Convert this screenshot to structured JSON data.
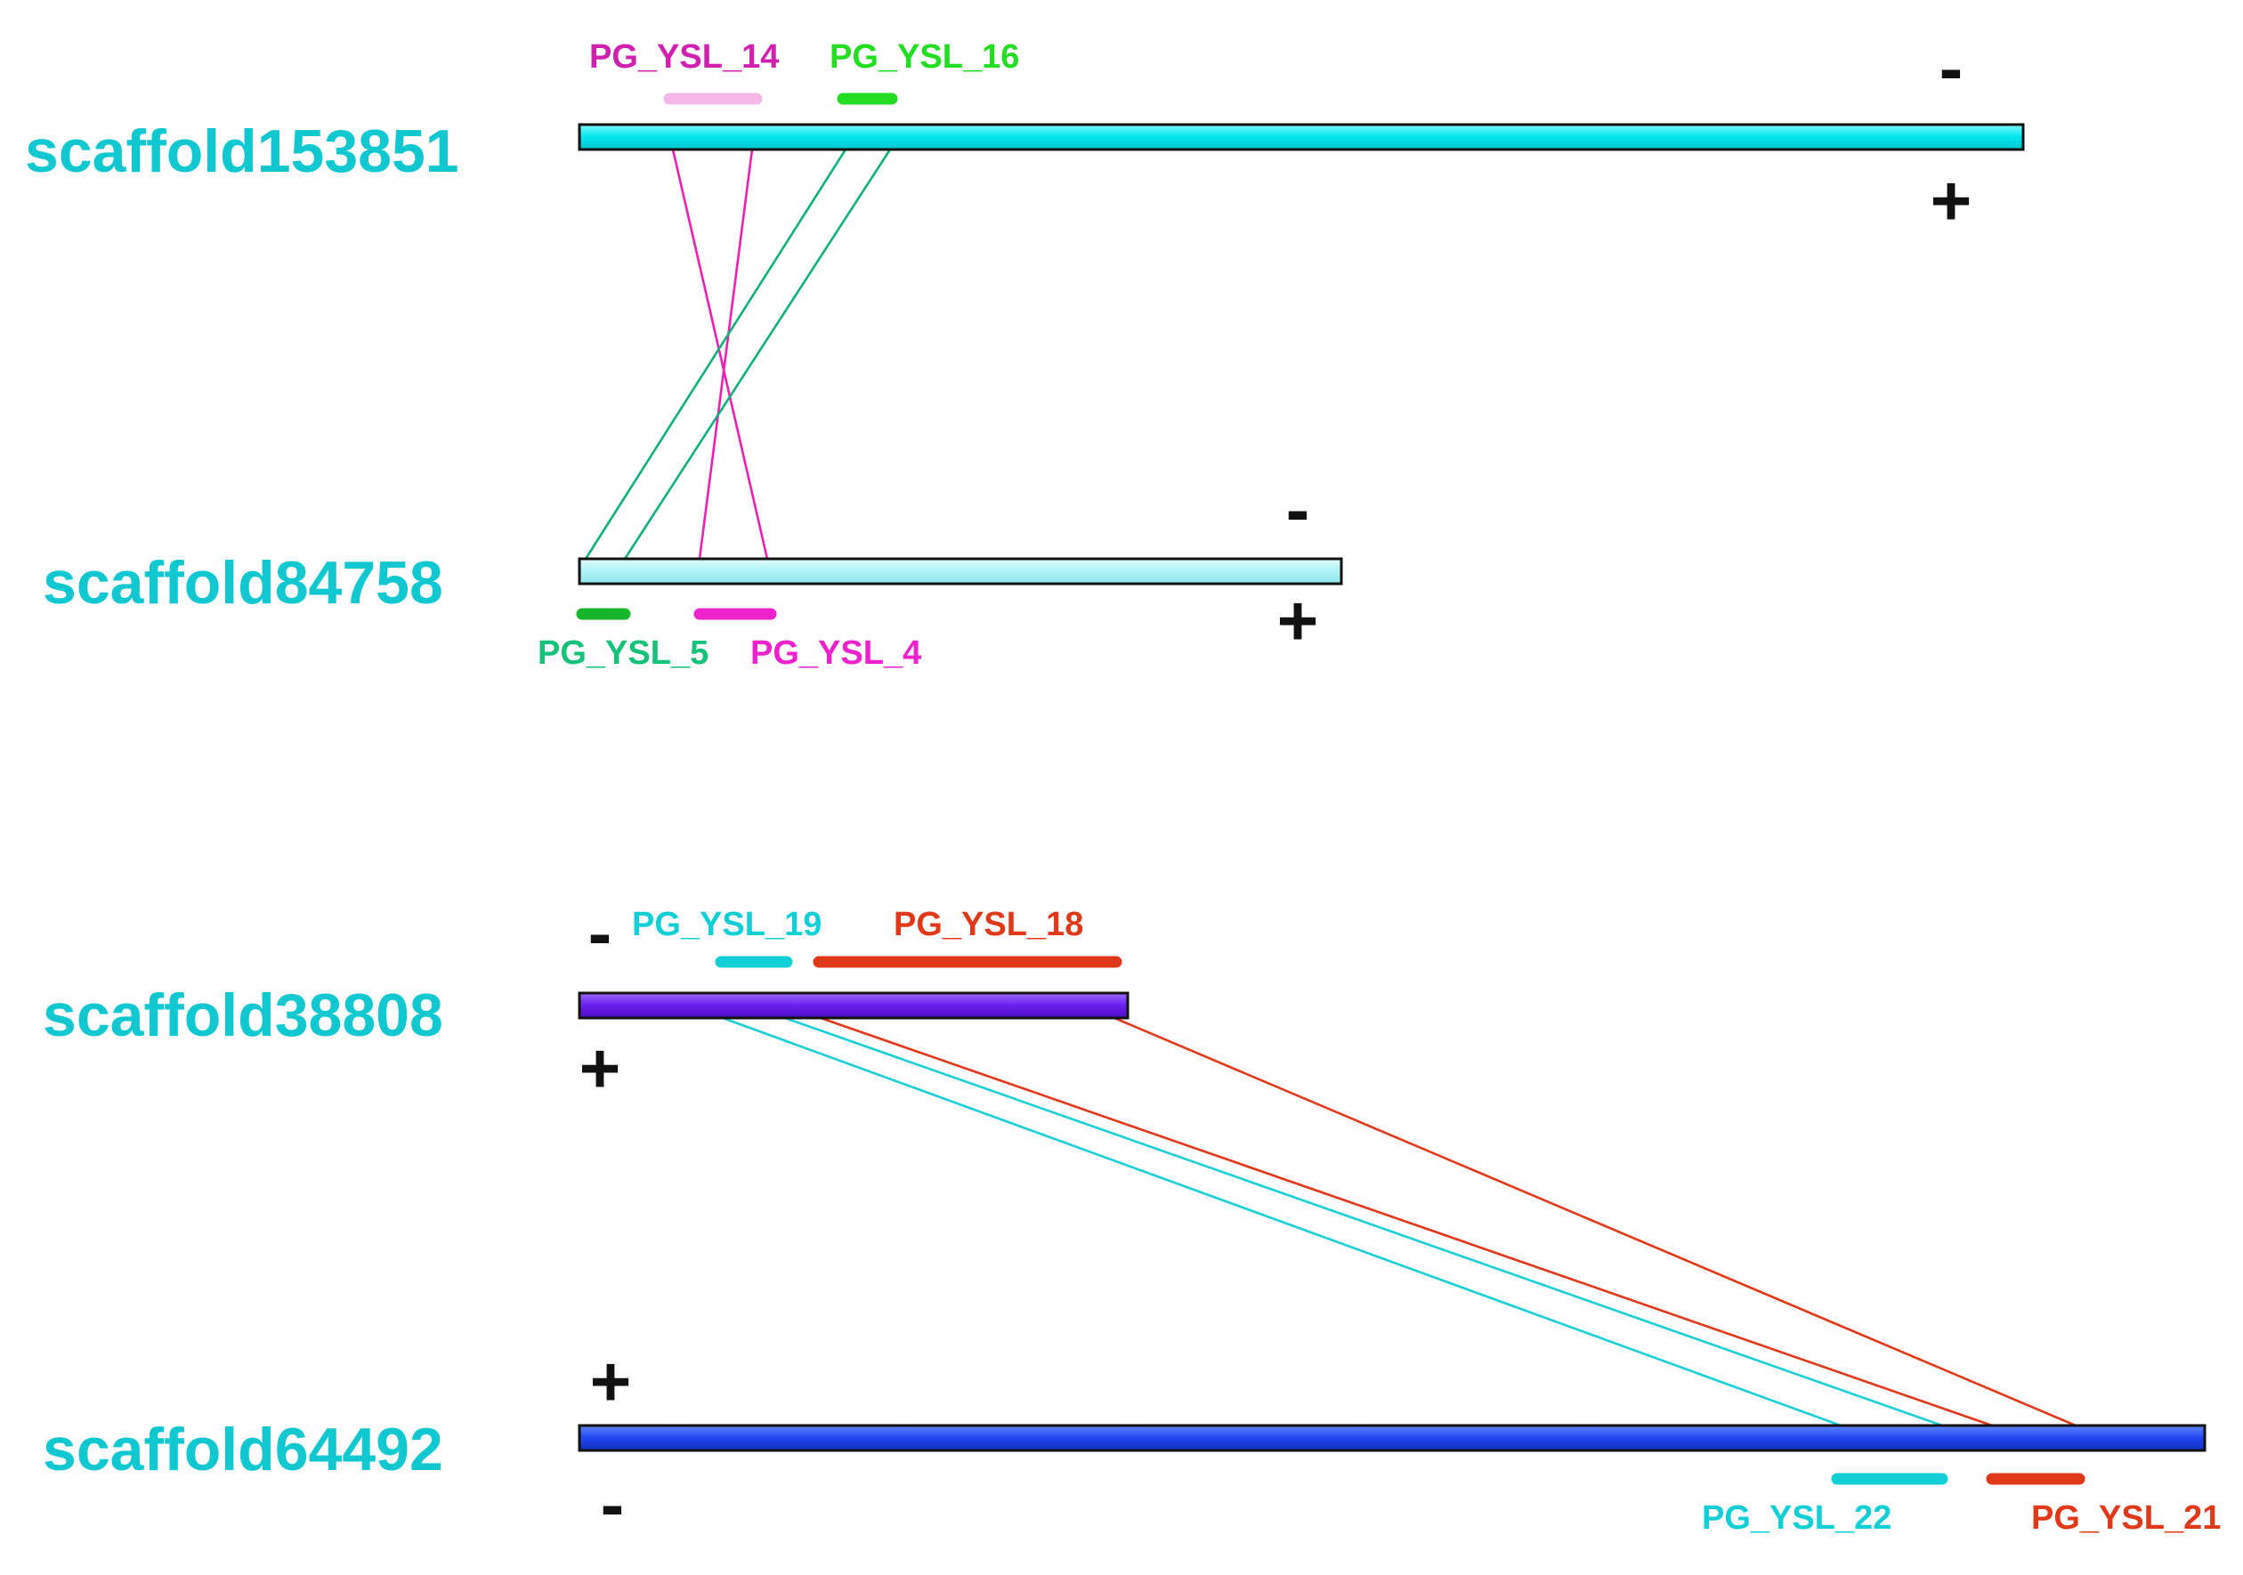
{
  "colors": {
    "scaffold_label": "#11c7d0",
    "scaffold153851": "#00e5ee",
    "scaffold84758": "#aef3f6",
    "scaffold38808": "#6a1ef0",
    "scaffold64492": "#1f45f0",
    "pink_link": "#ee1fb2",
    "green_link": "#10b079",
    "cyan_link": "#1ccfd6",
    "red_link": "#e0391a",
    "pg_ysl_14_text": "#d020b0",
    "pg_ysl_14_bar": "#f5b6e8",
    "pg_ysl_16": "#22dd22",
    "pg_ysl_5_text": "#14c27a",
    "pg_ysl_5_bar": "#16b62a",
    "pg_ysl_4": "#ee22cc",
    "pg_ysl_19": "#12cfd6",
    "pg_ysl_18": "#e0391a",
    "pg_ysl_22": "#12cfd6",
    "pg_ysl_21": "#e0391a"
  },
  "scaffolds": {
    "s153851": {
      "name": "scaffold153851",
      "top_strand": "-",
      "bottom_strand": "+"
    },
    "s84758": {
      "name": "scaffold84758",
      "top_strand": "-",
      "bottom_strand": "+"
    },
    "s38808": {
      "name": "scaffold38808",
      "top_strand": "-",
      "bottom_strand": "+"
    },
    "s64492": {
      "name": "scaffold64492",
      "top_strand": "+",
      "bottom_strand": "-"
    }
  },
  "genes": {
    "g14": "PG_YSL_14",
    "g16": "PG_YSL_16",
    "g5": "PG_YSL_5",
    "g4": "PG_YSL_4",
    "g19": "PG_YSL_19",
    "g18": "PG_YSL_18",
    "g22": "PG_YSL_22",
    "g21": "PG_YSL_21"
  }
}
